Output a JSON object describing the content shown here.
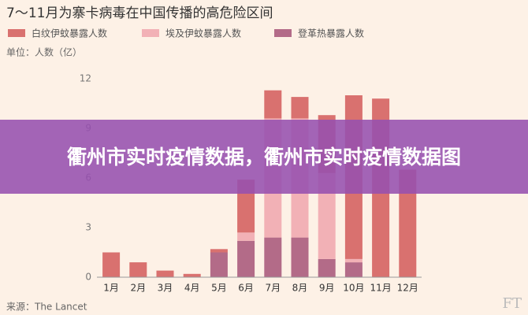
{
  "chart_data": {
    "type": "stacked-bar",
    "title": "7～11月为寨卡病毒在中国传播的高危险区间",
    "unit_label": "单位：人数（亿）",
    "source": "来源：The Lancet",
    "watermark": "FT",
    "categories": [
      "1月",
      "2月",
      "3月",
      "4月",
      "5月",
      "6月",
      "7月",
      "8月",
      "9月",
      "10月",
      "11月",
      "12月"
    ],
    "series": [
      {
        "name": "白纹伊蚊暴露人数",
        "color": "#d9716f",
        "values": [
          1.5,
          0.9,
          0.4,
          0.2,
          0.2,
          3.2,
          1.7,
          1.3,
          3.5,
          9.9,
          10.8,
          6.5
        ]
      },
      {
        "name": "埃及伊蚊暴露人数",
        "color": "#f2b1b6",
        "values": [
          0,
          0,
          0,
          0,
          0,
          0.5,
          7.2,
          7.2,
          5.2,
          0.2,
          0,
          0
        ]
      },
      {
        "name": "登革热暴露人数",
        "color": "#b36b88",
        "values": [
          0,
          0,
          0,
          0,
          1.5,
          2.2,
          2.4,
          2.4,
          1.1,
          0.9,
          0,
          0
        ]
      }
    ],
    "ylim": [
      0,
      12
    ],
    "yticks": [
      0,
      3,
      6,
      9,
      12
    ],
    "grid": false
  },
  "overlay_text": "衢州市实时疫情数据，衢州市实时疫情数据图"
}
